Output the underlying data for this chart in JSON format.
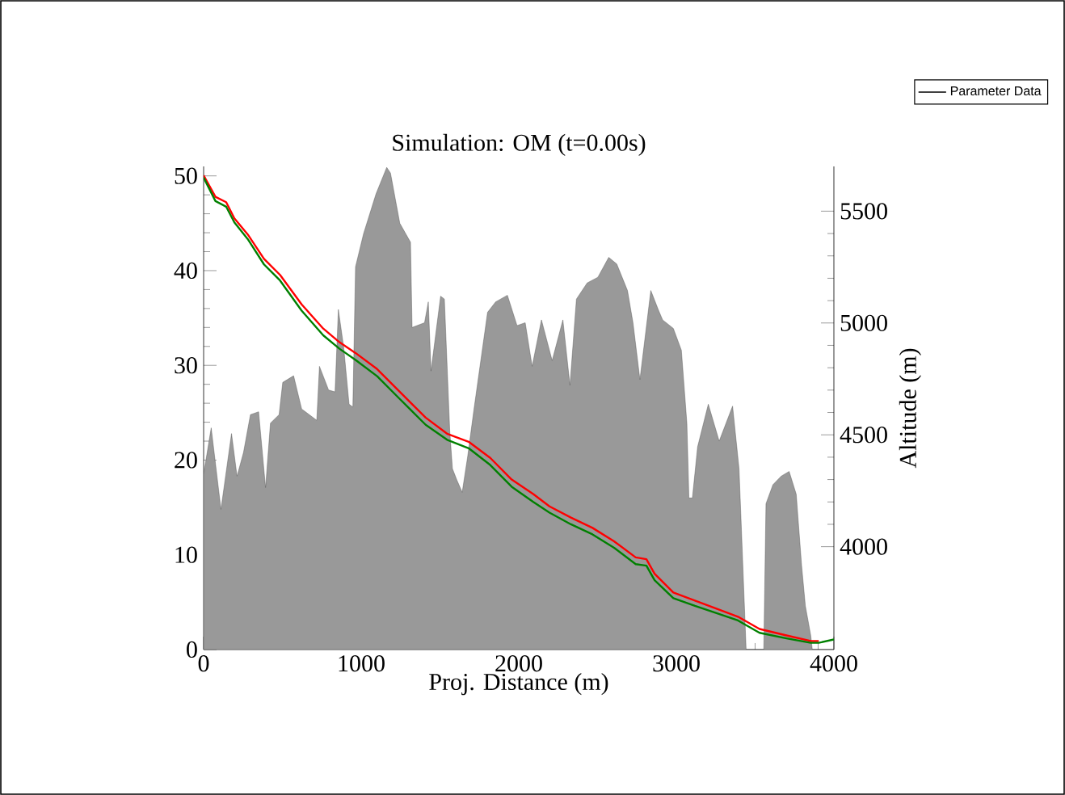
{
  "chart_data": {
    "type": "area",
    "title": "Simulation: OM  (t=0.00s)",
    "xlabel": "Proj. Distance (m)",
    "y2label": "Altitude (m)",
    "xlim": [
      0,
      4000
    ],
    "xticks": [
      0,
      1000,
      2000,
      3000,
      4000
    ],
    "ylim": [
      0,
      51
    ],
    "yticks": [
      0,
      10,
      20,
      30,
      40,
      50
    ],
    "y2lim": [
      3540,
      5700
    ],
    "y2ticks": [
      4000,
      4500,
      5000,
      5500
    ],
    "legend": "top right",
    "series": [
      {
        "name": "Parameter Data",
        "color": "#999999",
        "x": [
          0,
          48,
          110,
          177,
          212,
          253,
          297,
          349,
          393,
          424,
          479,
          502,
          571,
          622,
          718,
          735,
          793,
          834,
          855,
          889,
          923,
          947,
          964,
          1015,
          1094,
          1162,
          1186,
          1245,
          1313,
          1323,
          1402,
          1426,
          1443,
          1504,
          1528,
          1562,
          1579,
          1607,
          1641,
          1675,
          1716,
          1802,
          1853,
          1928,
          1989,
          2041,
          2085,
          2144,
          2212,
          2280,
          2325,
          2366,
          2434,
          2502,
          2571,
          2622,
          2690,
          2725,
          2769,
          2838,
          2885,
          2913,
          2981,
          3032,
          3067,
          3080,
          3102,
          3135,
          3203,
          3272,
          3357,
          3398,
          3443,
          3555,
          3569,
          3613,
          3665,
          3716,
          3761,
          3795,
          3819,
          3853,
          3863,
          4000
        ],
        "values": [
          18.5,
          23.4,
          14.8,
          22.8,
          18.3,
          20.8,
          24.8,
          25.1,
          17.1,
          23.9,
          24.8,
          28.2,
          28.9,
          25.4,
          24.2,
          29.9,
          27.4,
          27.2,
          35.9,
          31.9,
          25.9,
          25.6,
          40.4,
          43.9,
          48.1,
          50.9,
          50.3,
          45,
          43,
          34,
          34.5,
          36.7,
          29.4,
          37.3,
          37,
          23.1,
          19.1,
          17.9,
          16.6,
          20.3,
          25.4,
          35.6,
          36.7,
          37.4,
          34.2,
          34.5,
          29.9,
          34.8,
          30.5,
          34.8,
          27.9,
          37,
          38.7,
          39.3,
          41.4,
          40.7,
          37.9,
          34.5,
          28.5,
          37.9,
          35.9,
          34.8,
          33.9,
          31.6,
          23.9,
          16,
          16,
          21.4,
          25.9,
          22,
          25.7,
          19.1,
          0,
          0,
          15.4,
          17.4,
          18.3,
          18.8,
          16.4,
          8.9,
          4.6,
          1.5,
          0,
          0
        ]
      },
      {
        "type": "line",
        "axis": "y2",
        "color": "#ff0000",
        "x": [
          0,
          75,
          143,
          195,
          280,
          383,
          485,
          622,
          759,
          862,
          964,
          1101,
          1238,
          1409,
          1545,
          1682,
          1819,
          1955,
          2092,
          2195,
          2331,
          2468,
          2605,
          2742,
          2810,
          2862,
          2981,
          3118,
          3255,
          3391,
          3528,
          3699,
          3853,
          3904
        ],
        "values": [
          5660,
          5564,
          5540,
          5468,
          5396,
          5287,
          5215,
          5083,
          4975,
          4914,
          4866,
          4794,
          4697,
          4577,
          4505,
          4469,
          4397,
          4300,
          4235,
          4180,
          4130,
          4084,
          4024,
          3952,
          3944,
          3879,
          3795,
          3759,
          3723,
          3687,
          3632,
          3603,
          3578,
          3578
        ]
      },
      {
        "type": "line",
        "axis": "y2",
        "color": "#008000",
        "x": [
          0,
          75,
          143,
          195,
          280,
          383,
          485,
          622,
          759,
          862,
          964,
          1101,
          1238,
          1409,
          1545,
          1682,
          1819,
          1955,
          2092,
          2195,
          2331,
          2468,
          2605,
          2742,
          2810,
          2862,
          2981,
          3118,
          3255,
          3391,
          3528,
          3699,
          3853,
          3904,
          4000
        ],
        "values": [
          5650,
          5545,
          5520,
          5450,
          5375,
          5262,
          5190,
          5055,
          4945,
          4885,
          4835,
          4762,
          4665,
          4545,
          4478,
          4440,
          4365,
          4268,
          4200,
          4152,
          4100,
          4055,
          3995,
          3922,
          3915,
          3850,
          3770,
          3735,
          3703,
          3670,
          3615,
          3590,
          3570,
          3570,
          3585
        ]
      }
    ]
  }
}
